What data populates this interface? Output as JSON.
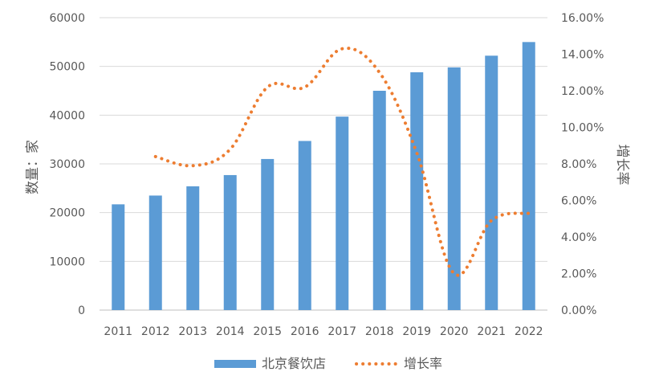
{
  "chart_data": {
    "type": "bar+line",
    "categories": [
      "2011",
      "2012",
      "2013",
      "2014",
      "2015",
      "2016",
      "2017",
      "2018",
      "2019",
      "2020",
      "2021",
      "2022"
    ],
    "series": [
      {
        "name": "北京餐饮店",
        "type": "bar",
        "axis": "left",
        "color": "#5B9BD5",
        "values": [
          21700,
          23500,
          25400,
          27700,
          31000,
          34700,
          39700,
          45000,
          48800,
          49800,
          52200,
          55000
        ]
      },
      {
        "name": "增长率",
        "type": "line",
        "style": "dotted",
        "axis": "right",
        "color": "#ED7D31",
        "values": [
          null,
          8.4,
          7.9,
          8.8,
          12.2,
          12.2,
          14.3,
          13.0,
          8.6,
          2.0,
          4.9,
          5.3
        ]
      }
    ],
    "y_left": {
      "label": "数量：家",
      "min": 0,
      "max": 60000,
      "ticks": [
        "0",
        "10000",
        "20000",
        "30000",
        "40000",
        "50000",
        "60000"
      ]
    },
    "y_right": {
      "label": "增长率",
      "min": 0,
      "max": 16,
      "ticks": [
        "0.00%",
        "2.00%",
        "4.00%",
        "6.00%",
        "8.00%",
        "10.00%",
        "12.00%",
        "14.00%",
        "16.00%"
      ]
    },
    "grid": true,
    "legend": "bottom",
    "colors": {
      "bar": "#5B9BD5",
      "line": "#ED7D31",
      "grid": "#D9D9D9",
      "axis": "#BFBFBF",
      "text": "#595959"
    }
  }
}
